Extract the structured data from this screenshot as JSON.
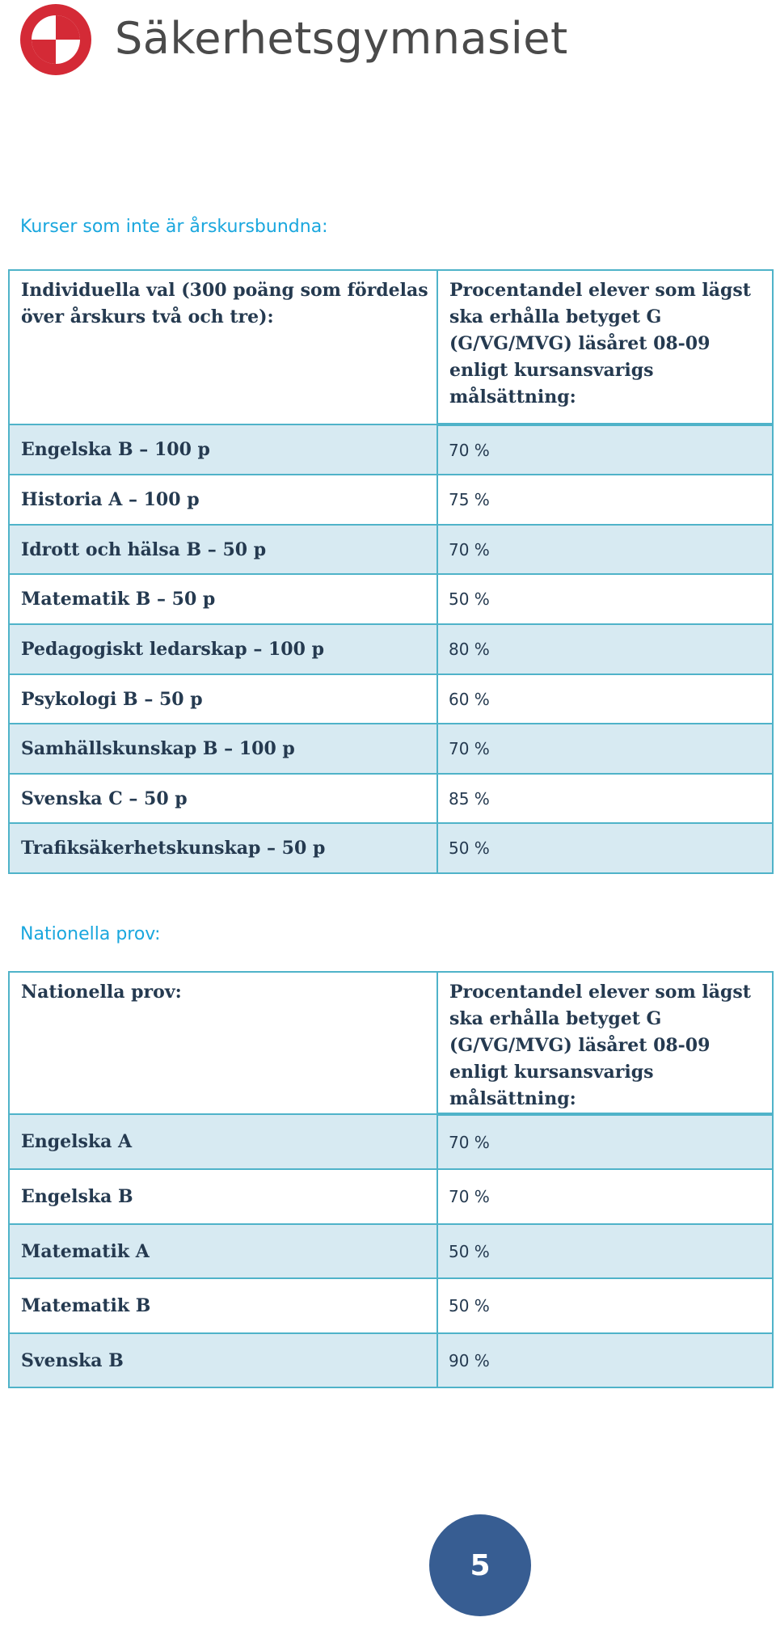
{
  "logo": {
    "name": "Säkerhetsgymnasiet"
  },
  "section1": {
    "heading": "Kurser som inte är årskursbundna:",
    "header_left": "Individuella val (300 poäng som fördelas över årskurs två och tre):",
    "header_right": "Procentandel elever som lägst ska erhålla betyget G (G/VG/MVG) läsåret 08-09 enligt kursansvarigs målsättning:",
    "rows": [
      {
        "course": "Engelska B – 100 p",
        "value": "70 %"
      },
      {
        "course": "Historia A – 100 p",
        "value": "75 %"
      },
      {
        "course": "Idrott och hälsa B – 50 p",
        "value": "70 %"
      },
      {
        "course": "Matematik B – 50 p",
        "value": "50 %"
      },
      {
        "course": "Pedagogiskt ledarskap – 100 p",
        "value": "80 %"
      },
      {
        "course": "Psykologi B – 50 p",
        "value": "60 %"
      },
      {
        "course": "Samhällskunskap B – 100 p",
        "value": "70 %"
      },
      {
        "course": "Svenska C – 50 p",
        "value": "85 %"
      },
      {
        "course": "Trafiksäkerhetskunskap  – 50 p",
        "value": "50 %"
      }
    ]
  },
  "section2": {
    "heading": "Nationella prov:",
    "header_left": "Nationella prov:",
    "header_right": "Procentandel elever som lägst ska erhålla betyget G (G/VG/MVG) läsåret 08-09 enligt kursansvarigs målsättning:",
    "rows": [
      {
        "course": "Engelska A",
        "value": "70 %"
      },
      {
        "course": "Engelska  B",
        "value": "70 %"
      },
      {
        "course": "Matematik A",
        "value": "50 %"
      },
      {
        "course": "Matematik  B",
        "value": "50 %"
      },
      {
        "course": "Svenska  B",
        "value": "90 %"
      }
    ]
  },
  "page_number": "5",
  "colors": {
    "heading": "#1aa7de",
    "table_border": "#4fb3c9",
    "row_shade": "#d7eaf2",
    "page_badge": "#375d92",
    "logo_red": "#d42a36"
  }
}
